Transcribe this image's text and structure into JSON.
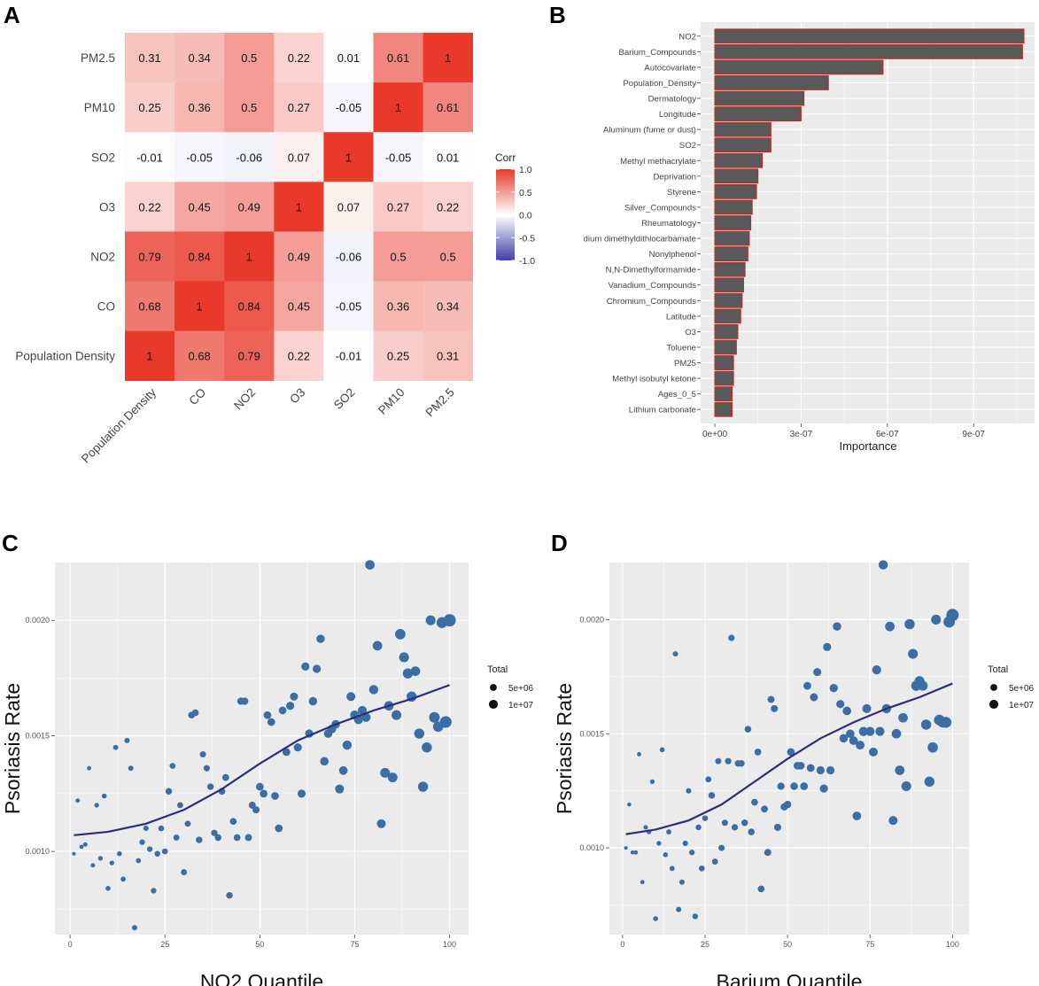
{
  "colors": {
    "panel_bg": "#ebebeb",
    "grid": "#ffffff",
    "bar_fill": "#595959",
    "bar_stroke": "#cc1f1f",
    "point": "#3a6ea5",
    "curve": "#2b2f7a",
    "corr_neg": "#3f3faa",
    "corr_zero": "#ffffff",
    "corr_pos": "#e8392b"
  },
  "chart_data": [
    {
      "panel": "A",
      "type": "heatmap",
      "row_labels": [
        "PM2.5",
        "PM10",
        "SO2",
        "O3",
        "NO2",
        "CO",
        "Population Density"
      ],
      "col_labels": [
        "Population Density",
        "CO",
        "NO2",
        "O3",
        "SO2",
        "PM10",
        "PM2.5"
      ],
      "values": [
        [
          0.31,
          0.34,
          0.5,
          0.22,
          0.01,
          0.61,
          1
        ],
        [
          0.25,
          0.36,
          0.5,
          0.27,
          -0.05,
          1,
          0.61
        ],
        [
          -0.01,
          -0.05,
          -0.06,
          0.07,
          1,
          -0.05,
          0.01
        ],
        [
          0.22,
          0.45,
          0.49,
          1,
          0.07,
          0.27,
          0.22
        ],
        [
          0.79,
          0.84,
          1,
          0.49,
          -0.06,
          0.5,
          0.5
        ],
        [
          0.68,
          1,
          0.84,
          0.45,
          -0.05,
          0.36,
          0.34
        ],
        [
          1,
          0.68,
          0.79,
          0.22,
          -0.01,
          0.25,
          0.31
        ]
      ],
      "legend_title": "Corr",
      "legend_ticks": [
        "1.0",
        "0.5",
        "0.0",
        "-0.5",
        "-1.0"
      ],
      "legend_range": [
        -1,
        1
      ]
    },
    {
      "panel": "B",
      "type": "bar",
      "orientation": "horizontal",
      "categories": [
        "NO2",
        "Barium_Compounds",
        "Autocovariate",
        "Population_Density",
        "Dermatology",
        "Longitude",
        "Aluminum (fume or dust)",
        "SO2",
        "Methyl methacrylate",
        "Deprivation",
        "Styrene",
        "Silver_Compounds",
        "Rheumatology",
        "dium dimethyldithiocarbamate",
        "Nonylphenol",
        "N,N-Dimethylformamide",
        "Vanadium_Compounds",
        "Chromium_Compounds",
        "Latitude",
        "O3",
        "Toluene",
        "PM25",
        "Methyl isobutyl ketone",
        "Ages_0_5",
        "Lithium carbonate"
      ],
      "values": [
        1.075e-06,
        1.07e-06,
        5.85e-07,
        3.95e-07,
        3.1e-07,
        3e-07,
        1.95e-07,
        1.95e-07,
        1.65e-07,
        1.5e-07,
        1.45e-07,
        1.3e-07,
        1.25e-07,
        1.2e-07,
        1.15e-07,
        1.05e-07,
        1e-07,
        9.5e-08,
        9e-08,
        8e-08,
        7.5e-08,
        6.5e-08,
        6.5e-08,
        6e-08,
        6e-08
      ],
      "xlabel": "Importance",
      "xlim": [
        0,
        1.12e-06
      ],
      "x_ticks": [
        0,
        3e-07,
        6e-07,
        9e-07
      ],
      "x_tick_labels": [
        "0e+00",
        "3e-07",
        "6e-07",
        "9e-07"
      ]
    },
    {
      "panel": "C",
      "type": "scatter",
      "xlabel": "NO2 Quantile",
      "ylabel": "Psoriasis Rate",
      "xlim": [
        -4,
        105
      ],
      "ylim": [
        0.00064,
        0.00225
      ],
      "x_ticks": [
        0,
        25,
        50,
        75,
        100
      ],
      "x_tick_labels": [
        "0",
        "25",
        "50",
        "75",
        "100"
      ],
      "y_ticks": [
        0.001,
        0.0015,
        0.002
      ],
      "y_tick_labels": [
        "0.0010",
        "0.0015",
        "0.0020"
      ],
      "legend_title": "Total",
      "legend_items": [
        {
          "label": "5e+06",
          "size": 5000000
        },
        {
          "label": "1e+07",
          "size": 10000000
        }
      ],
      "points": [
        [
          1,
          0.00099,
          0.1
        ],
        [
          2,
          0.00122,
          0.3
        ],
        [
          3,
          0.00102,
          0.3
        ],
        [
          4,
          0.00103,
          0.4
        ],
        [
          5,
          0.00136,
          0.3
        ],
        [
          6,
          0.00094,
          0.4
        ],
        [
          7,
          0.0012,
          0.5
        ],
        [
          8,
          0.00097,
          0.5
        ],
        [
          9,
          0.00124,
          0.6
        ],
        [
          10,
          0.00084,
          0.6
        ],
        [
          11,
          0.00095,
          0.5
        ],
        [
          12,
          0.00145,
          0.7
        ],
        [
          13,
          0.00099,
          0.6
        ],
        [
          14,
          0.00088,
          0.7
        ],
        [
          15,
          0.00148,
          0.8
        ],
        [
          16,
          0.00136,
          0.8
        ],
        [
          17,
          0.00067,
          0.8
        ],
        [
          18,
          0.00096,
          0.7
        ],
        [
          19,
          0.00104,
          1.0
        ],
        [
          20,
          0.0011,
          0.9
        ],
        [
          21,
          0.00101,
          1.0
        ],
        [
          22,
          0.00083,
          1.0
        ],
        [
          23,
          0.00099,
          1.1
        ],
        [
          24,
          0.0011,
          1.2
        ],
        [
          25,
          0.001,
          1.2
        ],
        [
          26,
          0.00126,
          1.8
        ],
        [
          27,
          0.00137,
          1.2
        ],
        [
          28,
          0.00106,
          1.4
        ],
        [
          29,
          0.0012,
          1.3
        ],
        [
          30,
          0.00091,
          1.3
        ],
        [
          31,
          0.00112,
          1.4
        ],
        [
          32,
          0.00159,
          2.0
        ],
        [
          33,
          0.0016,
          2.0
        ],
        [
          34,
          0.00105,
          1.8
        ],
        [
          35,
          0.00142,
          1.5
        ],
        [
          36,
          0.00136,
          1.6
        ],
        [
          37,
          0.00128,
          1.8
        ],
        [
          38,
          0.00108,
          1.7
        ],
        [
          39,
          0.00106,
          1.9
        ],
        [
          40,
          0.00126,
          2.0
        ],
        [
          41,
          0.00132,
          2.1
        ],
        [
          42,
          0.00081,
          1.8
        ],
        [
          43,
          0.00113,
          2.0
        ],
        [
          44,
          0.00106,
          2.0
        ],
        [
          45,
          0.00165,
          2.5
        ],
        [
          46,
          0.00165,
          2.6
        ],
        [
          47,
          0.00106,
          2.2
        ],
        [
          48,
          0.0012,
          2.3
        ],
        [
          49,
          0.00118,
          2.4
        ],
        [
          50,
          0.00128,
          3.0
        ],
        [
          51,
          0.00125,
          3.0
        ],
        [
          52,
          0.00159,
          3.0
        ],
        [
          53,
          0.00156,
          3.0
        ],
        [
          54,
          0.00124,
          3.0
        ],
        [
          55,
          0.0011,
          3.0
        ],
        [
          56,
          0.00161,
          3.0
        ],
        [
          57,
          0.00143,
          3.2
        ],
        [
          58,
          0.00163,
          3.5
        ],
        [
          59,
          0.00167,
          3.3
        ],
        [
          60,
          0.00145,
          3.5
        ],
        [
          61,
          0.00125,
          3.5
        ],
        [
          62,
          0.0018,
          3.5
        ],
        [
          63,
          0.00151,
          3.6
        ],
        [
          64,
          0.00165,
          3.8
        ],
        [
          65,
          0.00179,
          3.6
        ],
        [
          66,
          0.00192,
          3.8
        ],
        [
          67,
          0.00139,
          4.0
        ],
        [
          68,
          0.00151,
          4.0
        ],
        [
          69,
          0.00153,
          4.2
        ],
        [
          70,
          0.00155,
          4.0
        ],
        [
          71,
          0.00127,
          4.5
        ],
        [
          72,
          0.00135,
          4.2
        ],
        [
          73,
          0.00146,
          5.0
        ],
        [
          74,
          0.00167,
          4.5
        ],
        [
          75,
          0.00159,
          4.8
        ],
        [
          76,
          0.00157,
          4.7
        ],
        [
          77,
          0.00161,
          4.6
        ],
        [
          78,
          0.00158,
          4.8
        ],
        [
          79,
          0.00224,
          5.5
        ],
        [
          80,
          0.0017,
          5.0
        ],
        [
          81,
          0.00189,
          5.5
        ],
        [
          82,
          0.00112,
          4.5
        ],
        [
          83,
          0.00134,
          6.0
        ],
        [
          84,
          0.00163,
          5.5
        ],
        [
          85,
          0.00132,
          5.8
        ],
        [
          86,
          0.00159,
          6.0
        ],
        [
          87,
          0.00194,
          7.0
        ],
        [
          88,
          0.00184,
          6.0
        ],
        [
          89,
          0.00177,
          6.5
        ],
        [
          90,
          0.00167,
          6.5
        ],
        [
          91,
          0.00178,
          5.5
        ],
        [
          92,
          0.00151,
          6.5
        ],
        [
          93,
          0.00128,
          6.5
        ],
        [
          94,
          0.00145,
          6.5
        ],
        [
          95,
          0.002,
          6.0
        ],
        [
          96,
          0.00158,
          7.5
        ],
        [
          97,
          0.00154,
          7.0
        ],
        [
          98,
          0.00199,
          8.0
        ],
        [
          99,
          0.00156,
          9.5
        ],
        [
          100,
          0.002,
          11.0
        ]
      ],
      "trend": [
        [
          1,
          0.00107
        ],
        [
          10,
          0.001085
        ],
        [
          20,
          0.00112
        ],
        [
          30,
          0.00118
        ],
        [
          40,
          0.00127
        ],
        [
          50,
          0.00138
        ],
        [
          60,
          0.00148
        ],
        [
          70,
          0.00155
        ],
        [
          80,
          0.00161
        ],
        [
          90,
          0.00166
        ],
        [
          100,
          0.00172
        ]
      ]
    },
    {
      "panel": "D",
      "type": "scatter",
      "xlabel": "Barium Quantile",
      "ylabel": "Psoriasis Rate",
      "xlim": [
        -4,
        105
      ],
      "ylim": [
        0.00062,
        0.00225
      ],
      "x_ticks": [
        0,
        25,
        50,
        75,
        100
      ],
      "x_tick_labels": [
        "0",
        "25",
        "50",
        "75",
        "100"
      ],
      "y_ticks": [
        0.001,
        0.0015,
        0.002
      ],
      "y_tick_labels": [
        "0.0010",
        "0.0015",
        "0.0020"
      ],
      "legend_title": "Total",
      "legend_items": [
        {
          "label": "5e+06",
          "size": 5000000
        },
        {
          "label": "1e+07",
          "size": 10000000
        }
      ],
      "points": [
        [
          1,
          0.001,
          0.1
        ],
        [
          2,
          0.00119,
          0.2
        ],
        [
          3,
          0.00098,
          0.2
        ],
        [
          4,
          0.00098,
          0.3
        ],
        [
          5,
          0.00141,
          0.3
        ],
        [
          6,
          0.00085,
          0.3
        ],
        [
          7,
          0.00109,
          0.4
        ],
        [
          8,
          0.00107,
          0.5
        ],
        [
          9,
          0.00129,
          0.5
        ],
        [
          10,
          0.00069,
          0.6
        ],
        [
          11,
          0.00102,
          0.5
        ],
        [
          12,
          0.00143,
          0.6
        ],
        [
          13,
          0.00097,
          0.6
        ],
        [
          14,
          0.00107,
          0.7
        ],
        [
          15,
          0.00091,
          0.7
        ],
        [
          16,
          0.00185,
          0.8
        ],
        [
          17,
          0.00073,
          0.8
        ],
        [
          18,
          0.00085,
          0.8
        ],
        [
          19,
          0.00102,
          0.9
        ],
        [
          20,
          0.00125,
          0.9
        ],
        [
          21,
          0.00098,
          1.0
        ],
        [
          22,
          0.0007,
          1.0
        ],
        [
          23,
          0.00109,
          1.1
        ],
        [
          24,
          0.00091,
          1.2
        ],
        [
          25,
          0.00113,
          1.1
        ],
        [
          26,
          0.0013,
          1.3
        ],
        [
          27,
          0.00123,
          1.8
        ],
        [
          28,
          0.00094,
          1.4
        ],
        [
          29,
          0.00138,
          1.4
        ],
        [
          30,
          0.001,
          1.5
        ],
        [
          31,
          0.00111,
          1.5
        ],
        [
          32,
          0.00138,
          1.6
        ],
        [
          33,
          0.00192,
          1.6
        ],
        [
          34,
          0.00109,
          1.7
        ],
        [
          35,
          0.00137,
          1.7
        ],
        [
          36,
          0.00137,
          1.8
        ],
        [
          37,
          0.00111,
          1.8
        ],
        [
          38,
          0.00152,
          1.9
        ],
        [
          39,
          0.00107,
          1.9
        ],
        [
          40,
          0.0012,
          2.0
        ],
        [
          41,
          0.00142,
          2.0
        ],
        [
          42,
          0.00082,
          2.0
        ],
        [
          43,
          0.00117,
          2.1
        ],
        [
          44,
          0.00098,
          2.2
        ],
        [
          45,
          0.00165,
          2.2
        ],
        [
          46,
          0.00161,
          2.3
        ],
        [
          47,
          0.00109,
          2.4
        ],
        [
          48,
          0.00127,
          2.5
        ],
        [
          49,
          0.00118,
          2.5
        ],
        [
          50,
          0.00119,
          2.6
        ],
        [
          51,
          0.00142,
          3.0
        ],
        [
          52,
          0.00127,
          2.8
        ],
        [
          53,
          0.00136,
          3.0
        ],
        [
          54,
          0.00136,
          3.0
        ],
        [
          55,
          0.00127,
          3.0
        ],
        [
          56,
          0.00171,
          3.0
        ],
        [
          57,
          0.00135,
          3.2
        ],
        [
          58,
          0.00166,
          3.3
        ],
        [
          59,
          0.00177,
          3.3
        ],
        [
          60,
          0.00134,
          3.5
        ],
        [
          61,
          0.00126,
          3.5
        ],
        [
          62,
          0.00188,
          3.5
        ],
        [
          63,
          0.00134,
          3.6
        ],
        [
          64,
          0.0017,
          3.7
        ],
        [
          65,
          0.00197,
          3.8
        ],
        [
          66,
          0.00163,
          3.5
        ],
        [
          67,
          0.00148,
          4.0
        ],
        [
          68,
          0.0016,
          4.0
        ],
        [
          69,
          0.0015,
          4.0
        ],
        [
          70,
          0.00147,
          4.2
        ],
        [
          71,
          0.00114,
          4.3
        ],
        [
          72,
          0.00145,
          4.4
        ],
        [
          73,
          0.00151,
          5.0
        ],
        [
          74,
          0.00161,
          4.5
        ],
        [
          75,
          0.00151,
          4.8
        ],
        [
          76,
          0.00142,
          4.5
        ],
        [
          77,
          0.00178,
          4.7
        ],
        [
          78,
          0.00151,
          4.8
        ],
        [
          79,
          0.00224,
          5.0
        ],
        [
          80,
          0.00161,
          5.0
        ],
        [
          81,
          0.00197,
          5.5
        ],
        [
          82,
          0.00112,
          4.5
        ],
        [
          83,
          0.0015,
          5.5
        ],
        [
          84,
          0.00134,
          5.5
        ],
        [
          85,
          0.00157,
          5.5
        ],
        [
          86,
          0.00127,
          6.0
        ],
        [
          87,
          0.00198,
          6.5
        ],
        [
          88,
          0.00185,
          6.0
        ],
        [
          89,
          0.00171,
          6.5
        ],
        [
          90,
          0.00173,
          6.5
        ],
        [
          91,
          0.00171,
          6.0
        ],
        [
          92,
          0.00154,
          6.5
        ],
        [
          93,
          0.00129,
          6.5
        ],
        [
          94,
          0.00144,
          6.8
        ],
        [
          95,
          0.002,
          6.0
        ],
        [
          96,
          0.00156,
          7.5
        ],
        [
          97,
          0.00155,
          7.0
        ],
        [
          98,
          0.00155,
          8.0
        ],
        [
          99,
          0.00199,
          9.0
        ],
        [
          100,
          0.00202,
          11.0
        ]
      ],
      "trend": [
        [
          1,
          0.00106
        ],
        [
          10,
          0.00108
        ],
        [
          20,
          0.00112
        ],
        [
          30,
          0.00119
        ],
        [
          40,
          0.00129
        ],
        [
          50,
          0.00139
        ],
        [
          60,
          0.00148
        ],
        [
          70,
          0.00155
        ],
        [
          80,
          0.00161
        ],
        [
          90,
          0.00166
        ],
        [
          100,
          0.00172
        ]
      ]
    }
  ]
}
